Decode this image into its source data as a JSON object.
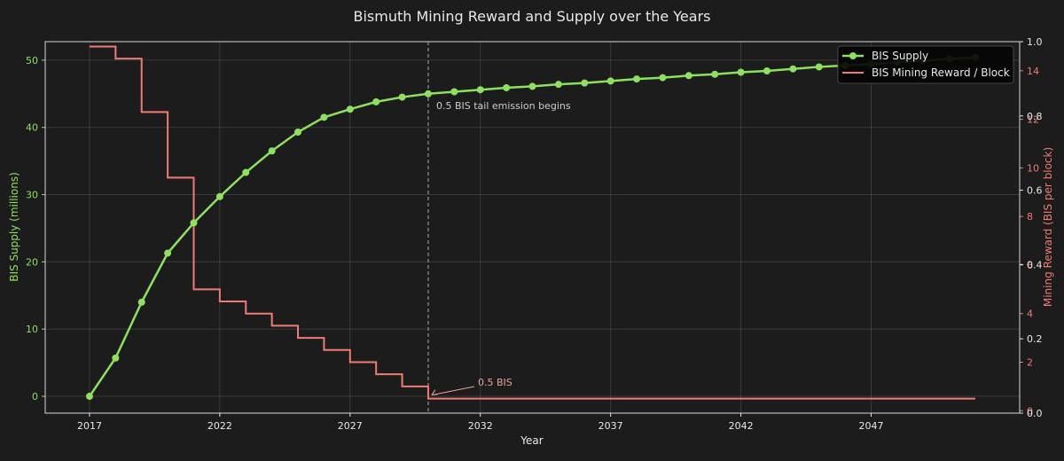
{
  "chart_data": {
    "type": "line",
    "title": "Bismuth Mining Reward and Supply over the Years",
    "xlabel": "Year",
    "ylabel_left": "BIS Supply (millions)",
    "ylabel_right": "Mining Reward (BIS per block)",
    "xlim": [
      2015.3,
      2052.7
    ],
    "xticks": [
      "2017",
      "2022",
      "2027",
      "2032",
      "2037",
      "2042",
      "2047"
    ],
    "ylim_left": [
      -2.5,
      52.75
    ],
    "yticks_left": [
      "0",
      "10",
      "20",
      "30",
      "40",
      "50"
    ],
    "ylim_right": [
      -0.1,
      15.2
    ],
    "yticks_right": [
      "0",
      "2",
      "4",
      "6",
      "8",
      "10",
      "12",
      "14"
    ],
    "yticks_extra_fraction": [
      "0.0",
      "0.2",
      "0.4",
      "0.6",
      "0.8",
      "1.0"
    ],
    "grid": true,
    "legend_position": "top-right",
    "colors": {
      "supply": "#8ee05f",
      "reward": "#f07b72",
      "background": "#1c1c1c",
      "text": "#e8e8e8"
    },
    "series": [
      {
        "name": "BIS Supply",
        "axis": "left",
        "style": "line-marker",
        "x": [
          2017,
          2018,
          2019,
          2020,
          2021,
          2022,
          2023,
          2024,
          2025,
          2026,
          2027,
          2028,
          2029,
          2030,
          2031,
          2032,
          2033,
          2034,
          2035,
          2036,
          2037,
          2038,
          2039,
          2040,
          2041,
          2042,
          2043,
          2044,
          2045,
          2046,
          2047,
          2048,
          2049,
          2050,
          2051
        ],
        "values": [
          0,
          5.7,
          14.0,
          21.3,
          25.8,
          29.7,
          33.3,
          36.5,
          39.3,
          41.5,
          42.7,
          43.8,
          44.5,
          45.0,
          45.3,
          45.6,
          45.9,
          46.1,
          46.4,
          46.6,
          46.9,
          47.2,
          47.4,
          47.7,
          47.9,
          48.2,
          48.4,
          48.7,
          49.0,
          49.2,
          49.4,
          49.7,
          49.9,
          50.2,
          50.4
        ]
      },
      {
        "name": "BIS Mining Reward / Block",
        "axis": "right",
        "style": "step",
        "x": [
          2017,
          2018,
          2019,
          2020,
          2021,
          2022,
          2023,
          2024,
          2025,
          2026,
          2027,
          2028,
          2029,
          2030,
          2031,
          2051
        ],
        "values": [
          15.0,
          14.5,
          12.3,
          9.6,
          5.0,
          4.5,
          4.0,
          3.5,
          3.0,
          2.5,
          2.0,
          1.5,
          1.0,
          0.5,
          0.5,
          0.5
        ]
      }
    ],
    "annotations": {
      "vline_x": 2030,
      "vline_text": "0.5 BIS tail emission begins",
      "arrow_text": "0.5 BIS",
      "arrow_point": [
        2030,
        0.5
      ]
    }
  }
}
